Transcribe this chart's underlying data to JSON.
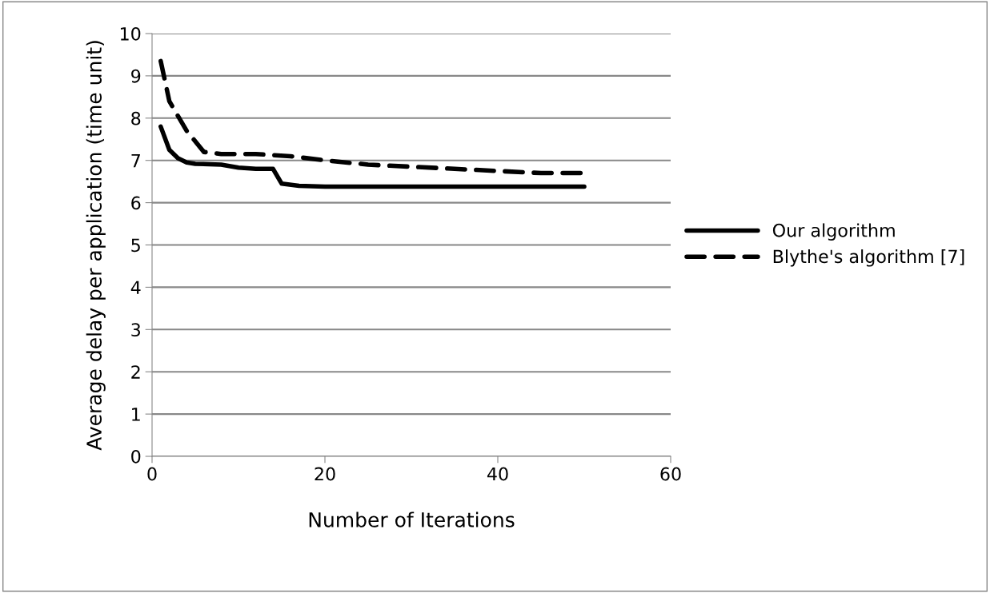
{
  "chart_data": {
    "type": "line",
    "xlabel": "Number of Iterations",
    "ylabel": "Average delay per application (time unit)",
    "xlim": [
      0,
      60
    ],
    "xticks": [
      0,
      20,
      40,
      60
    ],
    "ylim": [
      0,
      10
    ],
    "yticks": [
      0,
      1,
      2,
      3,
      4,
      5,
      6,
      7,
      8,
      9,
      10
    ],
    "grid": "y",
    "legend": "right",
    "series": [
      {
        "name": "Our algorithm",
        "color": "#000000",
        "line_style": "solid",
        "x": [
          1,
          2,
          3,
          4,
          5,
          8,
          10,
          12,
          14,
          15,
          17,
          20,
          30,
          40,
          50
        ],
        "values": [
          7.8,
          7.25,
          7.05,
          6.95,
          6.92,
          6.9,
          6.83,
          6.8,
          6.8,
          6.45,
          6.4,
          6.38,
          6.38,
          6.38,
          6.38
        ]
      },
      {
        "name": "Blythe's algorithm [7]",
        "color": "#000000",
        "line_style": "dashed",
        "x": [
          1,
          2,
          4,
          6,
          8,
          12,
          16,
          20,
          25,
          30,
          35,
          40,
          45,
          50
        ],
        "values": [
          9.35,
          8.4,
          7.7,
          7.2,
          7.15,
          7.15,
          7.1,
          7.0,
          6.9,
          6.85,
          6.8,
          6.75,
          6.7,
          6.7
        ]
      }
    ]
  }
}
